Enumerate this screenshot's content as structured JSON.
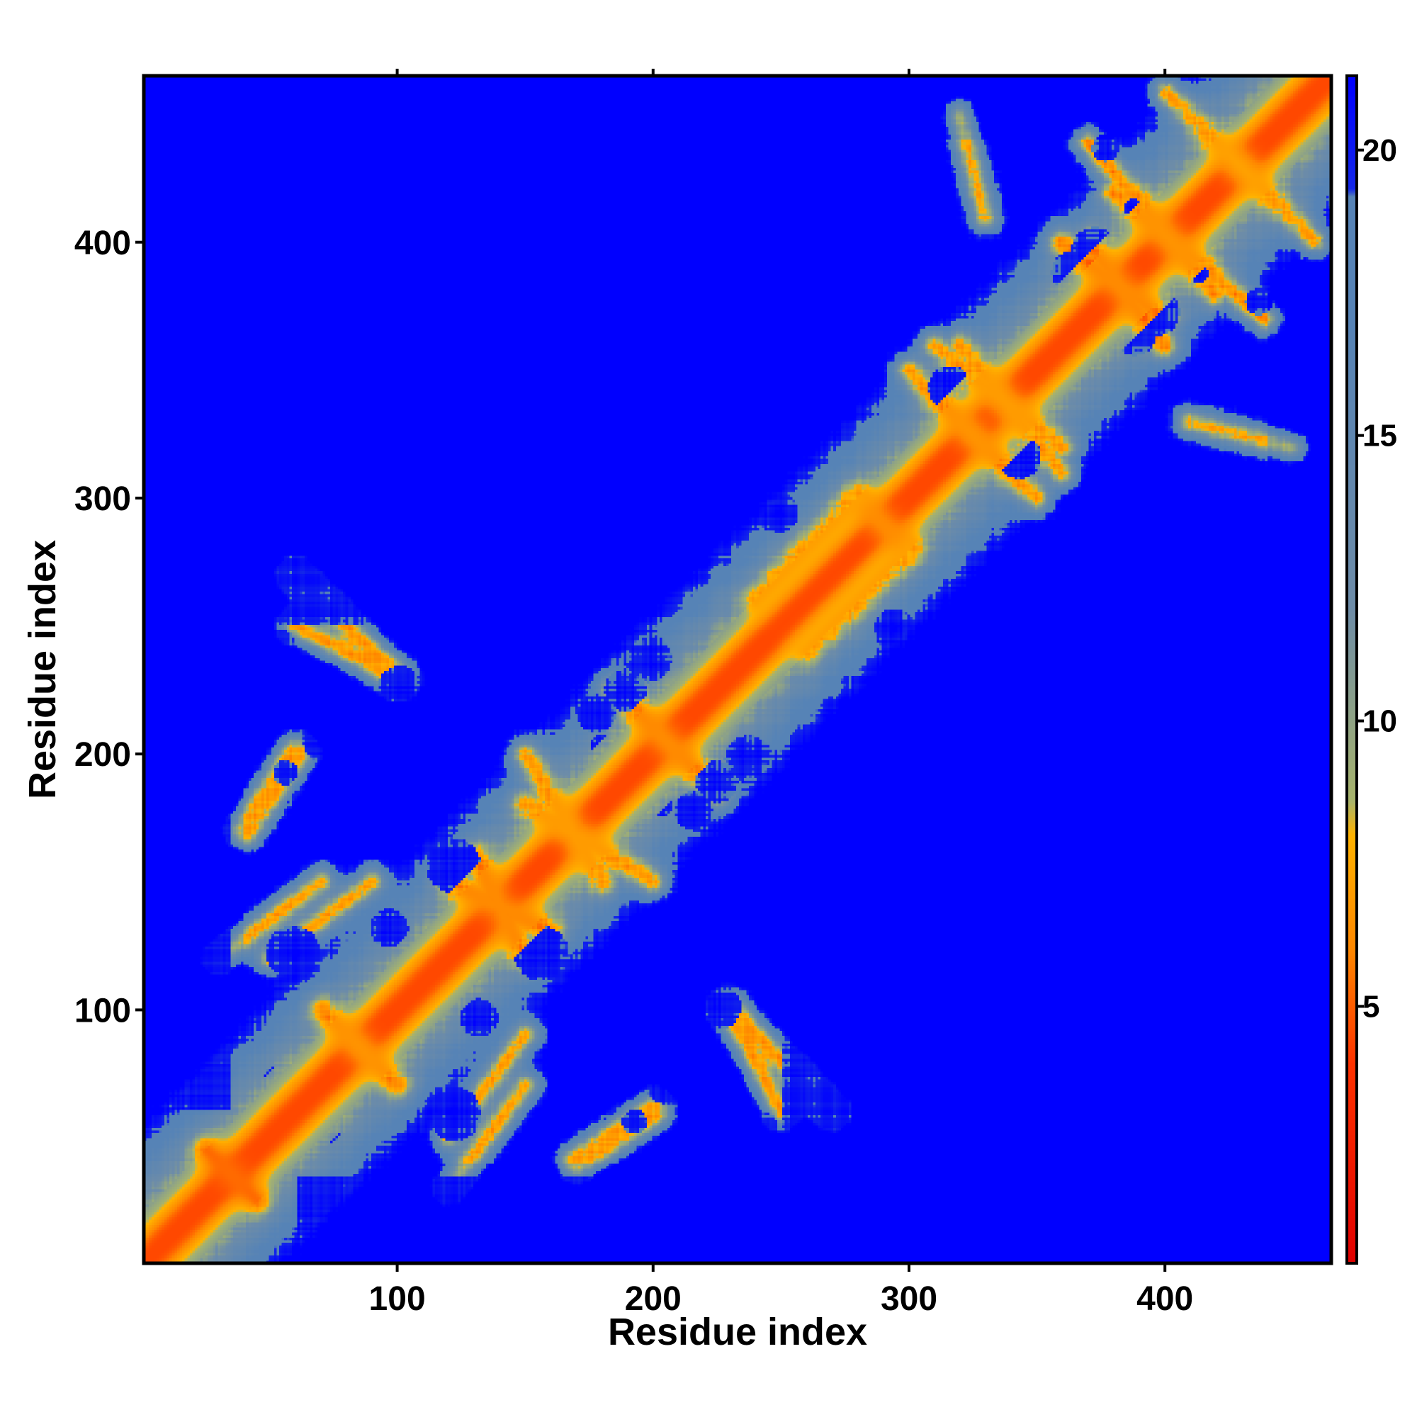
{
  "chart_data": {
    "type": "heatmap",
    "title": "",
    "xlabel": "Residue index",
    "ylabel": "Residue index",
    "xlim": [
      1,
      465
    ],
    "ylim": [
      1,
      465
    ],
    "x_ticks": [
      100,
      200,
      300,
      400
    ],
    "y_ticks": [
      100,
      200,
      300,
      400
    ],
    "x_tick_labels": [
      "100",
      "200",
      "300",
      "400"
    ],
    "y_tick_labels": [
      "100",
      "200",
      "300",
      "400"
    ],
    "colorbar": {
      "range": [
        0.5,
        21.3
      ],
      "ticks": [
        5,
        10,
        15,
        20
      ],
      "tick_labels": [
        "5",
        "10",
        "15",
        "20"
      ],
      "stops": [
        {
          "value": 0.5,
          "color": "#e00000"
        },
        {
          "value": 4.0,
          "color": "#ff3300"
        },
        {
          "value": 6.0,
          "color": "#ff8800"
        },
        {
          "value": 8.0,
          "color": "#ffb300"
        },
        {
          "value": 8.6,
          "color": "#a8b46c"
        },
        {
          "value": 12.0,
          "color": "#6d8ca8"
        },
        {
          "value": 17.0,
          "color": "#5683b6"
        },
        {
          "value": 19.2,
          "color": "#5683b6"
        },
        {
          "value": 19.3,
          "color": "#1428e8"
        },
        {
          "value": 21.3,
          "color": "#0000ff"
        }
      ]
    },
    "colors": {
      "far": "#0000ff",
      "mid": "#5683b6",
      "contact_edge": "#a8b46c",
      "contact": "#ff8800",
      "close": "#e00000"
    },
    "matrix_size": 465,
    "matrix_symmetric": true,
    "contact_segments": [
      {
        "a": [
          1,
          1
        ],
        "b": [
          465,
          465
        ],
        "strength": 1.0
      },
      {
        "a": [
          25,
          45
        ],
        "b": [
          45,
          25
        ],
        "strength": 0.8
      },
      {
        "a": [
          120,
          150
        ],
        "b": [
          160,
          130
        ],
        "strength": 0.6
      },
      {
        "a": [
          195,
          215
        ],
        "b": [
          225,
          185
        ],
        "strength": 0.6
      },
      {
        "a": [
          280,
          300
        ],
        "b": [
          300,
          280
        ],
        "strength": 0.6
      },
      {
        "a": [
          300,
          350
        ],
        "b": [
          340,
          310
        ],
        "strength": 0.5
      },
      {
        "a": [
          360,
          400
        ],
        "b": [
          400,
          370
        ],
        "strength": 0.6
      },
      {
        "a": [
          380,
          420
        ],
        "b": [
          440,
          370
        ],
        "strength": 0.5
      },
      {
        "a": [
          80,
          90
        ],
        "b": [
          100,
          70
        ],
        "strength": 0.5
      },
      {
        "a": [
          60,
          250
        ],
        "b": [
          100,
          230
        ],
        "strength": 0.4
      },
      {
        "a": [
          150,
          200
        ],
        "b": [
          180,
          150
        ],
        "strength": 0.4
      },
      {
        "a": [
          230,
          100
        ],
        "b": [
          270,
          60
        ],
        "strength": 0.4
      },
      {
        "a": [
          50,
          120
        ],
        "b": [
          90,
          150
        ],
        "strength": 0.35
      },
      {
        "a": [
          120,
          30
        ],
        "b": [
          150,
          70
        ],
        "strength": 0.35
      },
      {
        "a": [
          170,
          40
        ],
        "b": [
          200,
          60
        ],
        "strength": 0.35
      },
      {
        "a": [
          40,
          170
        ],
        "b": [
          60,
          200
        ],
        "strength": 0.35
      },
      {
        "a": [
          310,
          360
        ],
        "b": [
          360,
          320
        ],
        "strength": 0.4
      },
      {
        "a": [
          260,
          240
        ],
        "b": [
          300,
          280
        ],
        "strength": 0.35
      },
      {
        "a": [
          420,
          440
        ],
        "b": [
          460,
          400
        ],
        "strength": 0.35
      },
      {
        "a": [
          410,
          330
        ],
        "b": [
          450,
          320
        ],
        "strength": 0.3
      }
    ]
  }
}
